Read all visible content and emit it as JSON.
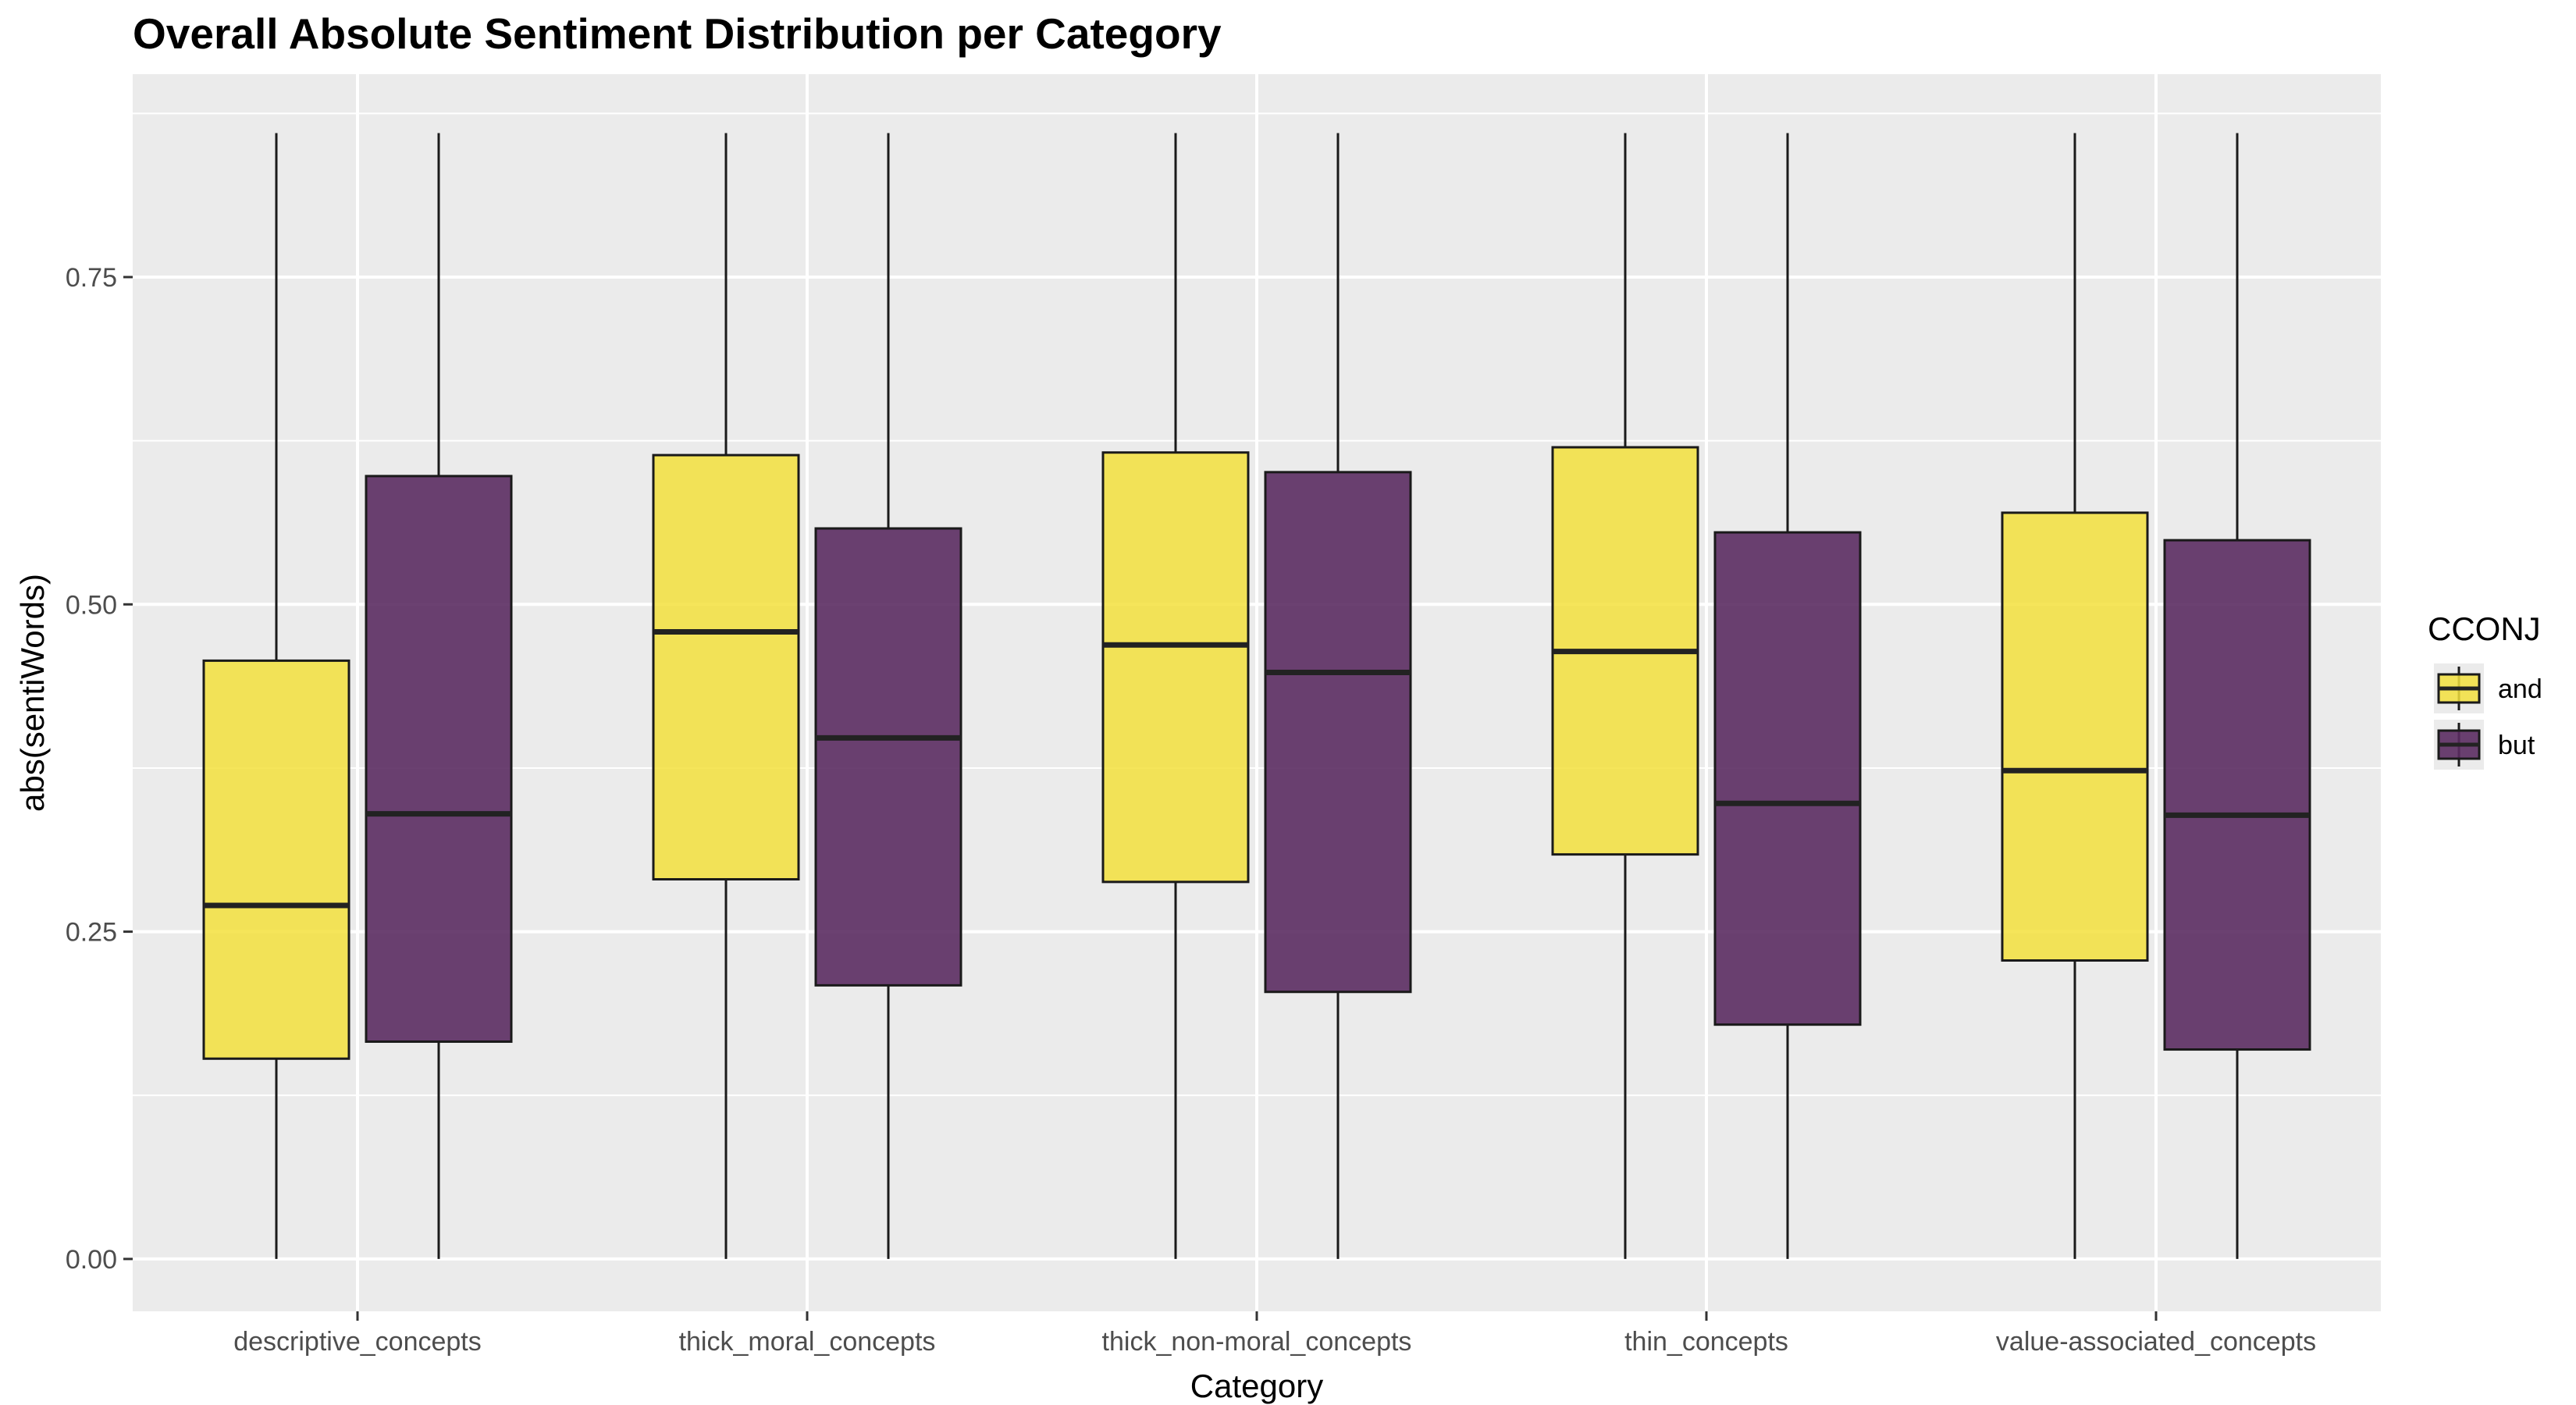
{
  "chart_data": {
    "type": "boxplot",
    "title": "Overall Absolute Sentiment Distribution per Category",
    "xlabel": "Category",
    "ylabel": "abs(sentiWords)",
    "ylim": [
      -0.04,
      0.905
    ],
    "yticks": [
      0.0,
      0.25,
      0.5,
      0.75
    ],
    "ytick_labels": [
      "0.00",
      "0.25",
      "0.50",
      "0.75"
    ],
    "categories": [
      "descriptive_concepts",
      "thick_moral_concepts",
      "thick_non-moral_concepts",
      "thin_concepts",
      "value-associated_concepts"
    ],
    "grid": true,
    "legend": {
      "title": "CCONJ",
      "placement": "right",
      "entries": [
        "and",
        "but"
      ]
    },
    "colors": {
      "and": "#F3E13D",
      "but": "#5B2C62",
      "panel": "#EBEBEB",
      "grid": "#FFFFFF"
    },
    "series": [
      {
        "name": "and",
        "boxes": [
          {
            "min": 0.0,
            "q1": 0.153,
            "median": 0.27,
            "q3": 0.457,
            "max": 0.86
          },
          {
            "min": 0.0,
            "q1": 0.29,
            "median": 0.479,
            "q3": 0.614,
            "max": 0.86
          },
          {
            "min": 0.0,
            "q1": 0.288,
            "median": 0.469,
            "q3": 0.616,
            "max": 0.86
          },
          {
            "min": 0.0,
            "q1": 0.309,
            "median": 0.464,
            "q3": 0.62,
            "max": 0.86
          },
          {
            "min": 0.0,
            "q1": 0.228,
            "median": 0.373,
            "q3": 0.57,
            "max": 0.86
          }
        ]
      },
      {
        "name": "but",
        "boxes": [
          {
            "min": 0.0,
            "q1": 0.166,
            "median": 0.34,
            "q3": 0.598,
            "max": 0.86
          },
          {
            "min": 0.0,
            "q1": 0.209,
            "median": 0.398,
            "q3": 0.558,
            "max": 0.86
          },
          {
            "min": 0.0,
            "q1": 0.204,
            "median": 0.448,
            "q3": 0.601,
            "max": 0.86
          },
          {
            "min": 0.0,
            "q1": 0.179,
            "median": 0.348,
            "q3": 0.555,
            "max": 0.86
          },
          {
            "min": 0.0,
            "q1": 0.16,
            "median": 0.339,
            "q3": 0.549,
            "max": 0.86
          }
        ]
      }
    ]
  }
}
